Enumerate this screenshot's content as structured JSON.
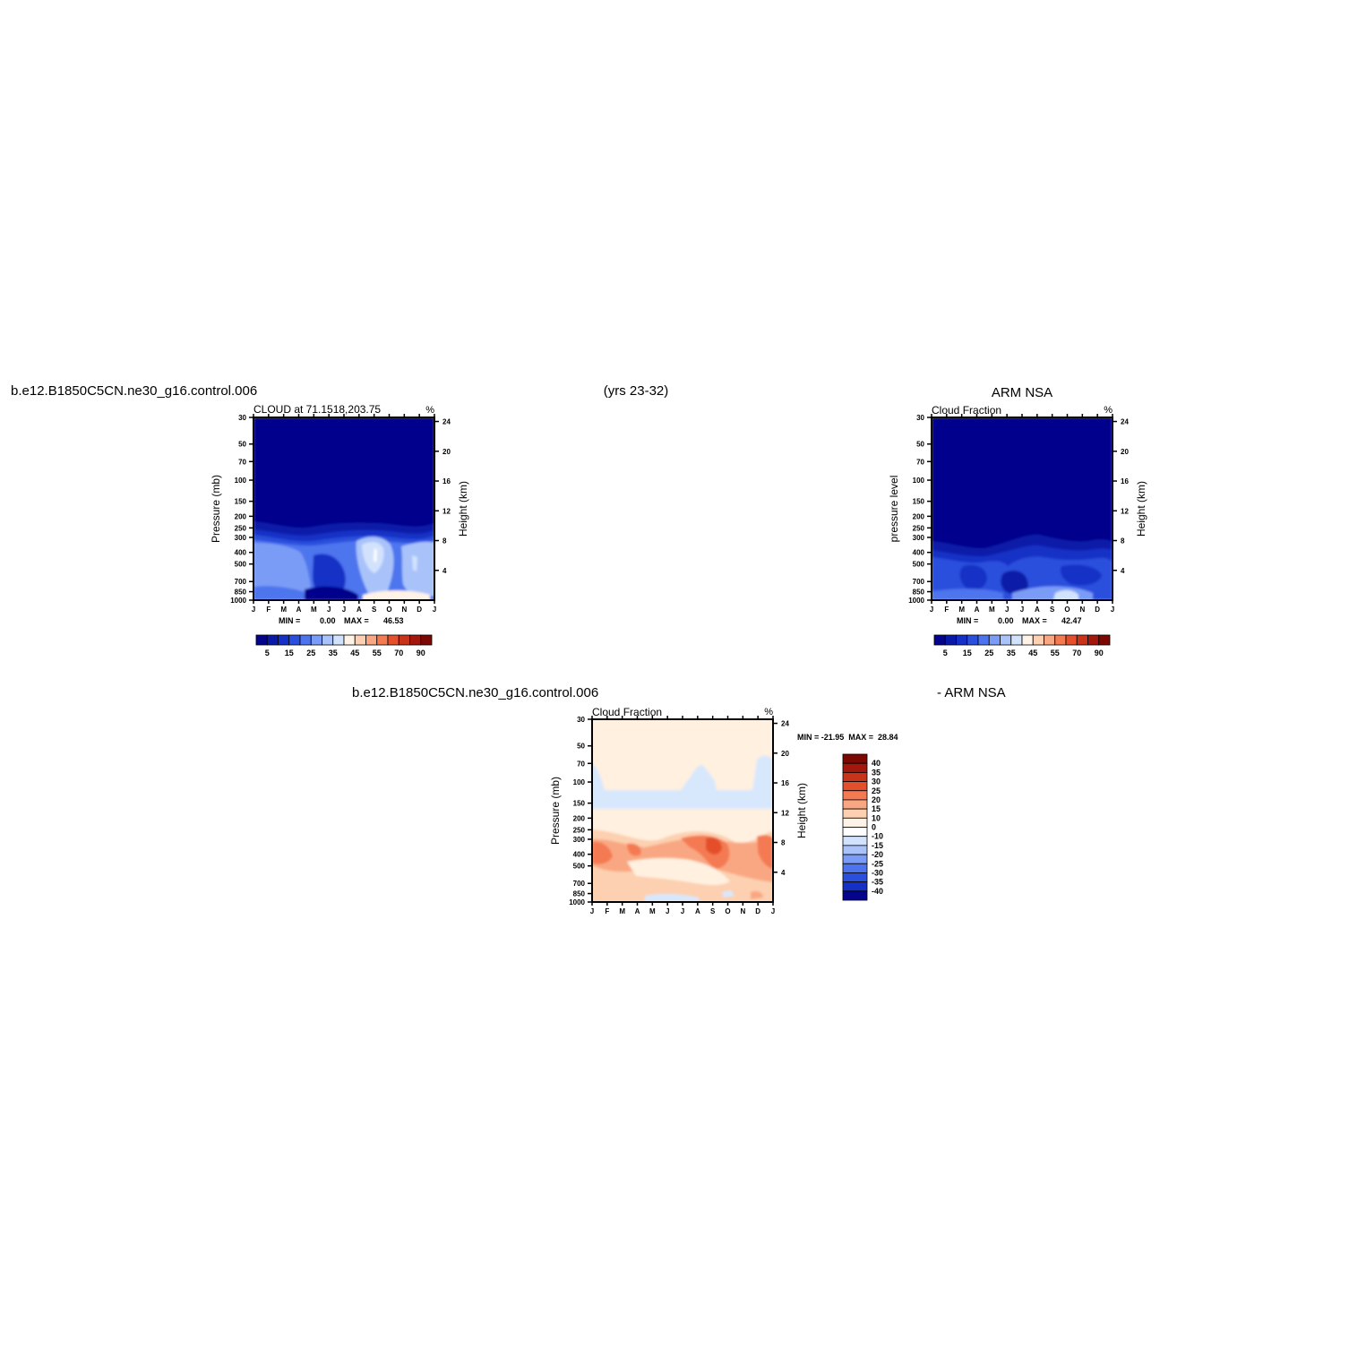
{
  "header": {
    "case_name": "b.e12.B1850C5CN.ne30_g16.control.006",
    "years": "(yrs 23-32)",
    "obs_name": "ARM  NSA"
  },
  "diff_header": {
    "case_name": "b.e12.B1850C5CN.ne30_g16.control.006",
    "obs_name": "- ARM  NSA"
  },
  "axis_text": {
    "months": [
      "J",
      "F",
      "M",
      "A",
      "M",
      "J",
      "J",
      "A",
      "S",
      "O",
      "N",
      "D",
      "J"
    ],
    "pressure_ticks": [
      "30",
      "50",
      "70",
      "100",
      "150",
      "200",
      "250",
      "300",
      "400",
      "500",
      "700",
      "850",
      "1000"
    ],
    "height_ticks": [
      "24",
      "20",
      "16",
      "12",
      "8",
      "4"
    ],
    "units": "%"
  },
  "chart_data": [
    {
      "type": "heatmap",
      "title": "CLOUD at 71.1518,203.75",
      "ylabel": "Pressure (mb)",
      "ylabel_right": "Height (km)",
      "x": [
        "J",
        "F",
        "M",
        "A",
        "M",
        "J",
        "J",
        "A",
        "S",
        "O",
        "N",
        "D",
        "J"
      ],
      "pressure_levels": [
        30,
        50,
        70,
        100,
        150,
        200,
        250,
        300,
        400,
        500,
        700,
        850,
        1000
      ],
      "height_ticks_km": [
        24,
        20,
        16,
        12,
        8,
        4
      ],
      "units": "%",
      "min_label": "MIN =",
      "min_value": "0.00",
      "max_label": "MAX =",
      "max_value": "46.53",
      "contour_levels": [
        5,
        10,
        15,
        20,
        25,
        30,
        35,
        40,
        45,
        50,
        55,
        60,
        70,
        80,
        90
      ],
      "colorbar_labels": [
        "5",
        "15",
        "25",
        "35",
        "45",
        "55",
        "70",
        "90"
      ],
      "colors": [
        "#04058c",
        "#0a1aa8",
        "#1530c6",
        "#2a4fdd",
        "#4d74ee",
        "#7a9cf6",
        "#a9c3fa",
        "#d3e2fc",
        "#fff2e6",
        "#fcd0b0",
        "#f9a782",
        "#f47a52",
        "#e4502c",
        "#c8331a",
        "#a3170c",
        "#7c0803"
      ],
      "approx_contour_region": {
        "below_200mb_pct": "15-45",
        "above_200mb_pct": "0-5"
      }
    },
    {
      "type": "heatmap",
      "title": "Cloud Fraction",
      "ylabel": "pressure level",
      "ylabel_right": "Height (km)",
      "x": [
        "J",
        "F",
        "M",
        "A",
        "M",
        "J",
        "J",
        "A",
        "S",
        "O",
        "N",
        "D",
        "J"
      ],
      "pressure_levels": [
        30,
        50,
        70,
        100,
        150,
        200,
        250,
        300,
        400,
        500,
        700,
        850,
        1000
      ],
      "height_ticks_km": [
        24,
        20,
        16,
        12,
        8,
        4
      ],
      "units": "%",
      "min_label": "MIN =",
      "min_value": "0.00",
      "max_label": "MAX =",
      "max_value": "42.47",
      "contour_levels": [
        5,
        10,
        15,
        20,
        25,
        30,
        35,
        40,
        45,
        50,
        55,
        60,
        70,
        80,
        90
      ],
      "colorbar_labels": [
        "5",
        "15",
        "25",
        "35",
        "45",
        "55",
        "70",
        "90"
      ]
    },
    {
      "type": "heatmap",
      "title": "Cloud Fraction",
      "ylabel": "Pressure (mb)",
      "ylabel_right": "Height (km)",
      "x": [
        "J",
        "F",
        "M",
        "A",
        "M",
        "J",
        "J",
        "A",
        "S",
        "O",
        "N",
        "D",
        "J"
      ],
      "pressure_levels": [
        30,
        50,
        70,
        100,
        150,
        200,
        250,
        300,
        400,
        500,
        700,
        850,
        1000
      ],
      "height_ticks_km": [
        24,
        20,
        16,
        12,
        8,
        4
      ],
      "units": "%",
      "minmax_text": "MIN = -21.95  MAX =  28.84",
      "contour_levels": [
        -40,
        -35,
        -30,
        -25,
        -20,
        -15,
        -10,
        0,
        10,
        15,
        20,
        25,
        30,
        35,
        40
      ],
      "colorbar_labels": [
        "40",
        "35",
        "30",
        "25",
        "20",
        "15",
        "10",
        "0",
        "-10",
        "-15",
        "-20",
        "-25",
        "-30",
        "-35",
        "-40"
      ],
      "colors_top_to_bottom": [
        "#7c0803",
        "#a3170c",
        "#c8331a",
        "#e4502c",
        "#f47a52",
        "#f9a782",
        "#fcd0b0",
        "#fff2e6",
        "#ffffff",
        "#d3e2fc",
        "#a9c3fa",
        "#7a9cf6",
        "#4d74ee",
        "#2a4fdd",
        "#1530c6",
        "#04058c"
      ]
    }
  ]
}
